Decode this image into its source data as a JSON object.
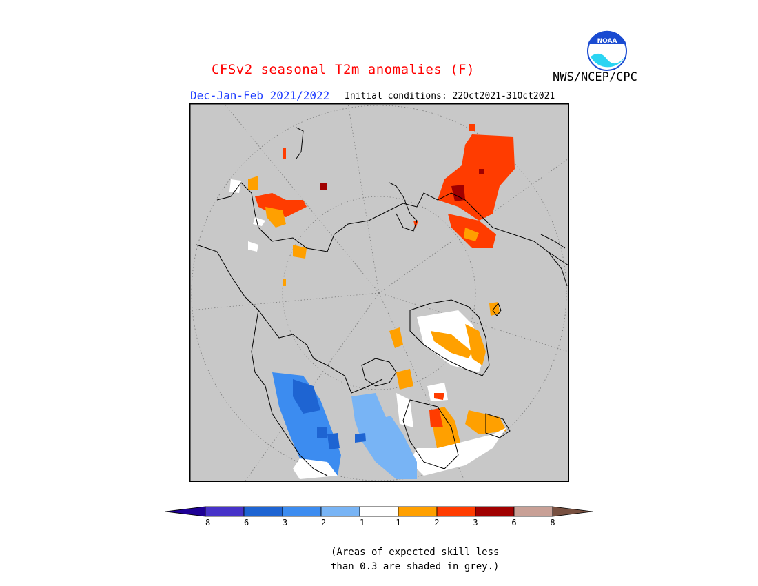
{
  "header": {
    "title": "CFSv2 seasonal T2m anomalies (F)",
    "agency": "NWS/NCEP/CPC",
    "period": "Dec-Jan-Feb 2021/2022",
    "initial_conditions": "Initial conditions: 22Oct2021-31Oct2021",
    "logo_text": "NOAA"
  },
  "colors": {
    "background": "#c8c8c8",
    "land_outline": "#000000",
    "grid": "#7a7a7a"
  },
  "legend": {
    "bins": [
      {
        "color": "#1e0096"
      },
      {
        "color": "#4632c8"
      },
      {
        "color": "#1e64d2"
      },
      {
        "color": "#3c8cf0"
      },
      {
        "color": "#78b4f5"
      },
      {
        "color": "#ffffff"
      },
      {
        "color": "#ffa000"
      },
      {
        "color": "#ff3c00"
      },
      {
        "color": "#a00000"
      },
      {
        "color": "#c8a096"
      },
      {
        "color": "#785040"
      }
    ],
    "labels": [
      "-8",
      "-6",
      "-3",
      "-2",
      "-1",
      "1",
      "2",
      "3",
      "6",
      "8"
    ]
  },
  "footnote": {
    "line1": "(Areas of expected skill less",
    "line2": "than 0.3 are shaded in grey.)"
  }
}
